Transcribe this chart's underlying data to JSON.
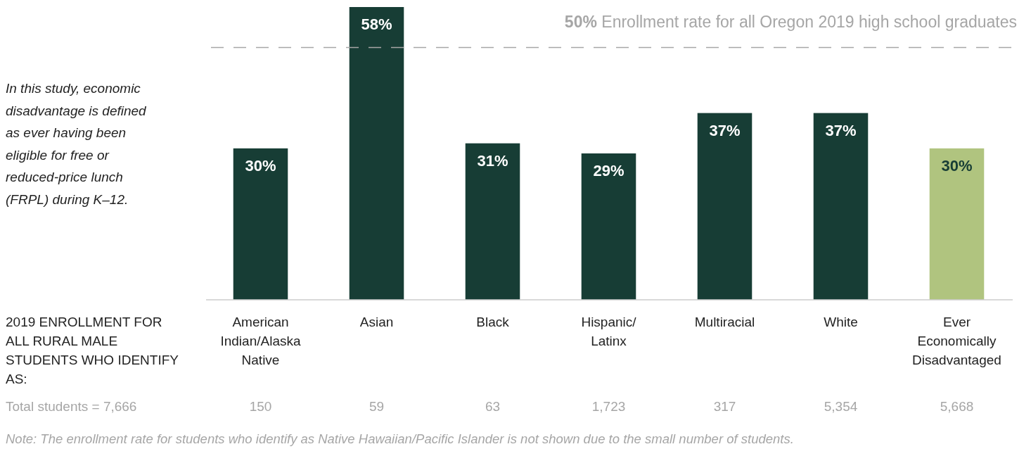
{
  "chart_data": {
    "type": "bar",
    "categories": [
      "American Indian/Alaska Native",
      "Asian",
      "Black",
      "Hispanic/Latinx",
      "Multiracial",
      "White",
      "Ever Economically Disadvantaged"
    ],
    "values": [
      30,
      58,
      31,
      29,
      37,
      37,
      30
    ],
    "colors": [
      "#173d35",
      "#173d35",
      "#173d35",
      "#173d35",
      "#173d35",
      "#173d35",
      "#b0c47f"
    ],
    "value_labels": [
      "30%",
      "58%",
      "31%",
      "29%",
      "37%",
      "37%",
      "30%"
    ],
    "ref_lines": [
      {
        "axis": "y",
        "value": 50,
        "label": "50% Enrollment rate for all Oregon 2019 high school graduates",
        "color": "#a6a6a6",
        "line_style": "dashed"
      }
    ],
    "annotations": [
      "In this study, economic disadvantage is defined as ever having been eligible for free or reduced-price lunch (FRPL) during K–12.",
      "2019 ENROLLMENT FOR ALL RURAL MALE STUDENTS WHO IDENTIFY AS:",
      "Total students = 7,666",
      "Note: The enrollment rate for students who identify as Native Hawaiian/Pacific Islander is not shown due to the small number of students.",
      "150",
      "59",
      "63",
      "1,723",
      "317",
      "5,354",
      "5,668"
    ]
  }
}
